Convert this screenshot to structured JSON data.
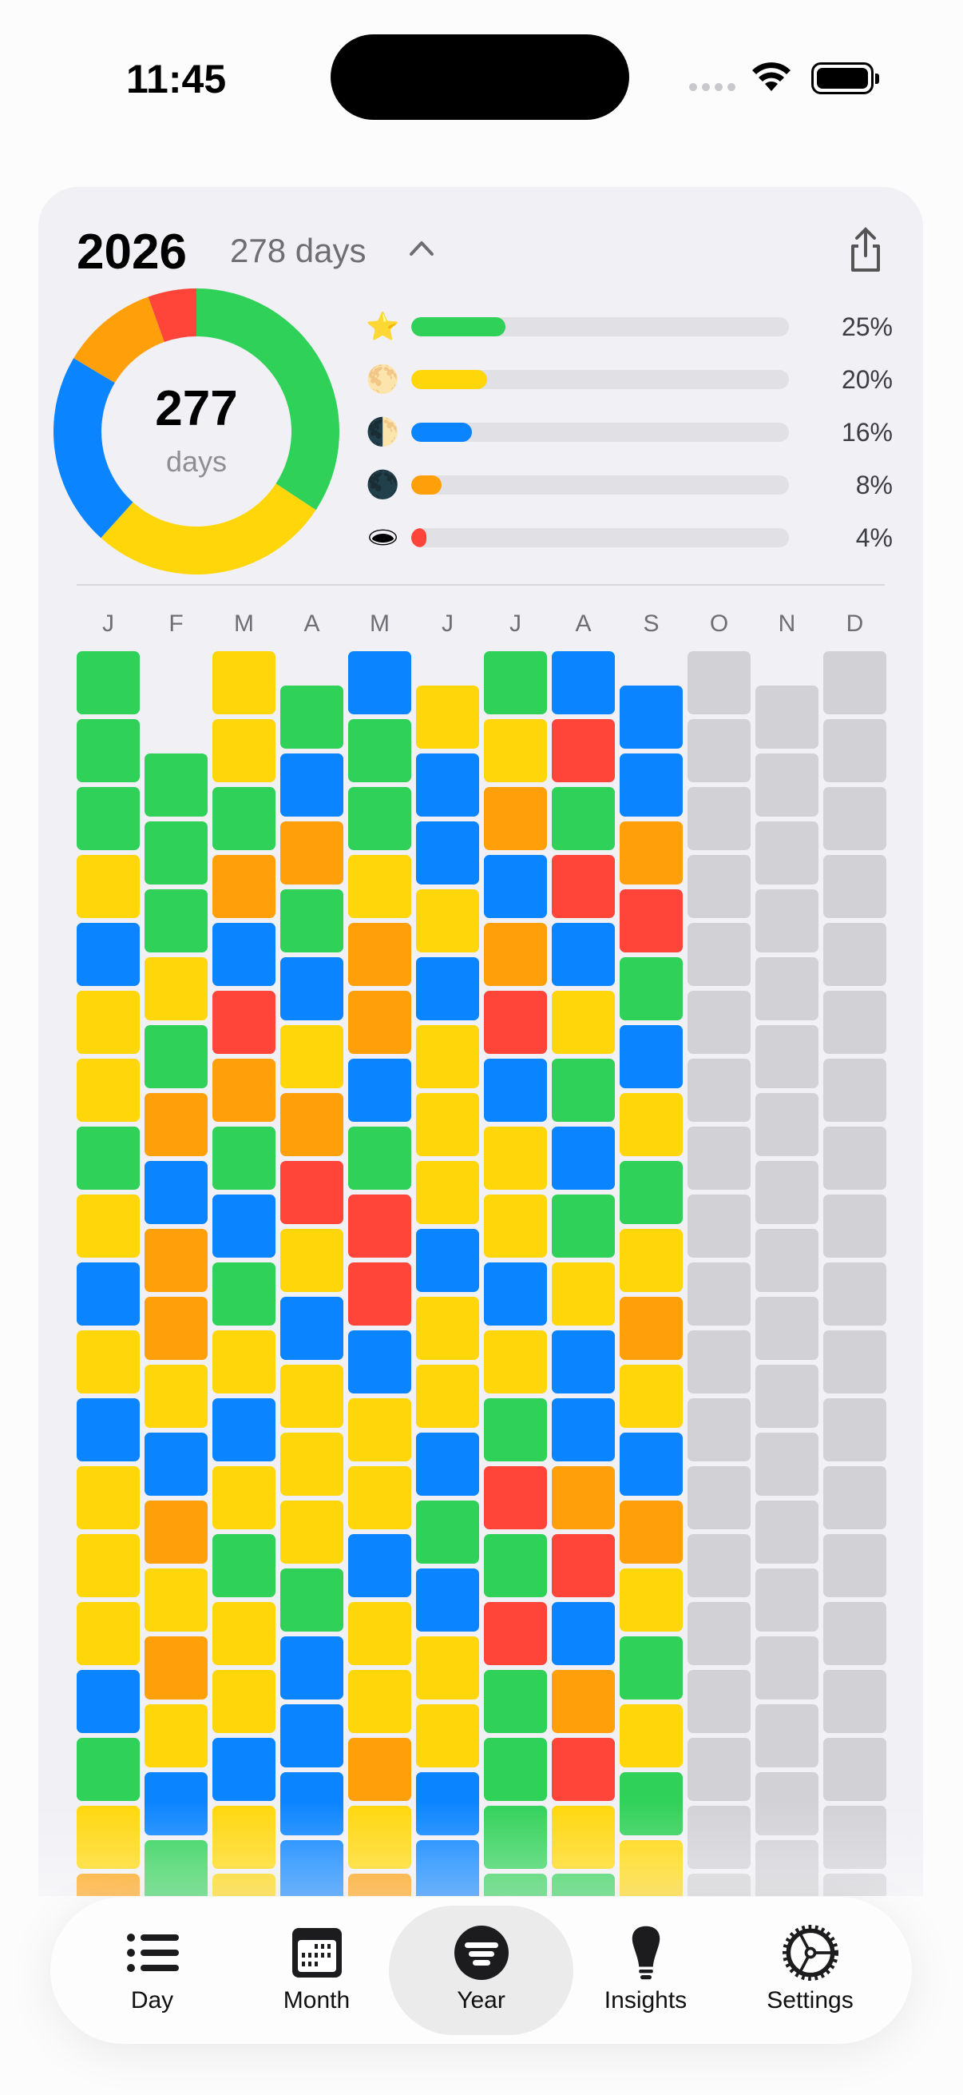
{
  "status_bar": {
    "time": "11:45"
  },
  "header": {
    "year": "2026",
    "days": "278 days"
  },
  "summary": {
    "total": "277",
    "unit": "days"
  },
  "legend": [
    {
      "icon": "star-icon",
      "emoji": "⭐",
      "color": "#30d158",
      "percent": 25,
      "label": "25%"
    },
    {
      "icon": "full-moon-icon",
      "emoji": "🌕",
      "color": "#ffd60a",
      "percent": 20,
      "label": "20%"
    },
    {
      "icon": "half-moon-icon",
      "emoji": "🌓",
      "color": "#0a84ff",
      "percent": 16,
      "label": "16%"
    },
    {
      "icon": "new-moon-icon",
      "emoji": "🌑",
      "color": "#ff9f0a",
      "percent": 8,
      "label": "8%"
    },
    {
      "icon": "hole-icon",
      "emoji": "🕳",
      "color": "#ff453a",
      "percent": 4,
      "label": "4%"
    }
  ],
  "colors": {
    "G": "#30d158",
    "Y": "#ffd60a",
    "B": "#0a84ff",
    "O": "#ff9f0a",
    "R": "#ff453a",
    "X": "#d1d1d6"
  },
  "months": [
    {
      "label": "J",
      "days": "GGGYBYYGYBYBYYYBGYO"
    },
    {
      "label": "F",
      "days": "GGGYGOBOOYBOYOYBG"
    },
    {
      "label": "M",
      "days": "YYGOBROGBGYBYGYYBYY"
    },
    {
      "label": "A",
      "days": "GBOGBYORYBYYYGBBBB"
    },
    {
      "label": "M",
      "days": "BGGYOOBGRRBYYBYYOYO"
    },
    {
      "label": "J",
      "days": "YBBYBYYYBYYBGBYYBB"
    },
    {
      "label": "J",
      "days": "GYOBORBYYBYGRGRGGGG"
    },
    {
      "label": "A",
      "days": "BRGRBYGBGYBBORBORYG"
    },
    {
      "label": "S",
      "days": "BBORGBYGYOYBOYGYGY"
    },
    {
      "label": "O",
      "days": "XXXXXXXXXXXXXXXXXXX"
    },
    {
      "label": "N",
      "days": "XXXXXXXXXXXXXXXXXX"
    },
    {
      "label": "D",
      "days": "XXXXXXXXXXXXXXXXXXX"
    }
  ],
  "tabs": [
    {
      "label": "Day",
      "icon": "list-icon"
    },
    {
      "label": "Month",
      "icon": "calendar-icon"
    },
    {
      "label": "Year",
      "icon": "year-icon",
      "active": true
    },
    {
      "label": "Insights",
      "icon": "lightbulb-icon"
    },
    {
      "label": "Settings",
      "icon": "gear-icon"
    }
  ]
}
